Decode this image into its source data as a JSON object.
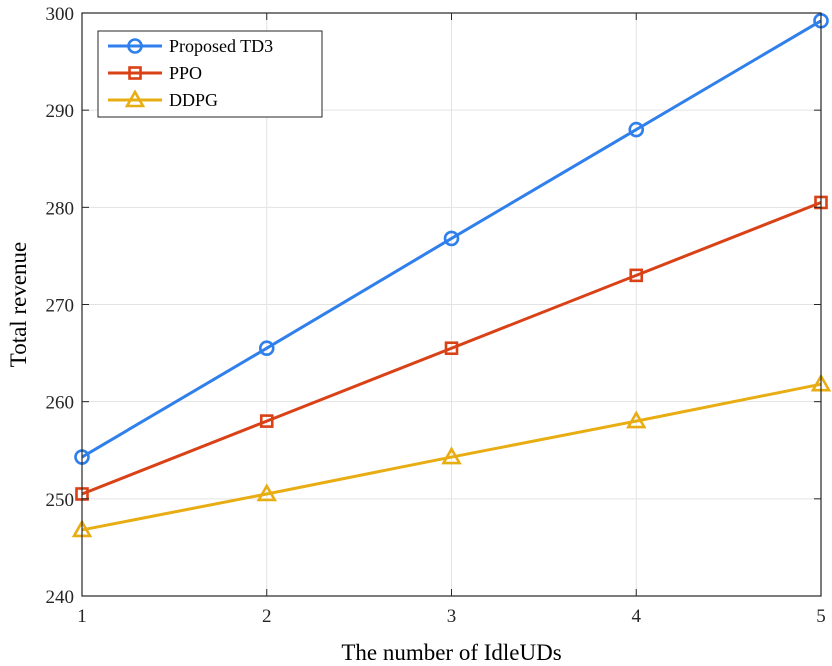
{
  "chart_data": {
    "type": "line",
    "title": "",
    "xlabel": "The number of IdleUDs",
    "ylabel": "Total revenue",
    "x": [
      1,
      2,
      3,
      4,
      5
    ],
    "xlim": [
      1,
      5
    ],
    "ylim": [
      240,
      300
    ],
    "xticks": [
      "1",
      "2",
      "3",
      "4",
      "5"
    ],
    "yticks": [
      "240",
      "250",
      "260",
      "270",
      "280",
      "290",
      "300"
    ],
    "grid": true,
    "legend_position": "top-left",
    "series": [
      {
        "name": "Proposed TD3",
        "values": [
          254.3,
          265.5,
          276.8,
          288.0,
          299.2
        ],
        "color": "#2f7fec",
        "marker": "circle"
      },
      {
        "name": "PPO",
        "values": [
          250.5,
          258.0,
          265.5,
          273.0,
          280.5
        ],
        "color": "#d94116",
        "marker": "square"
      },
      {
        "name": "DDPG",
        "values": [
          246.8,
          250.5,
          254.3,
          258.0,
          261.8
        ],
        "color": "#e8ad12",
        "marker": "triangle"
      }
    ]
  }
}
